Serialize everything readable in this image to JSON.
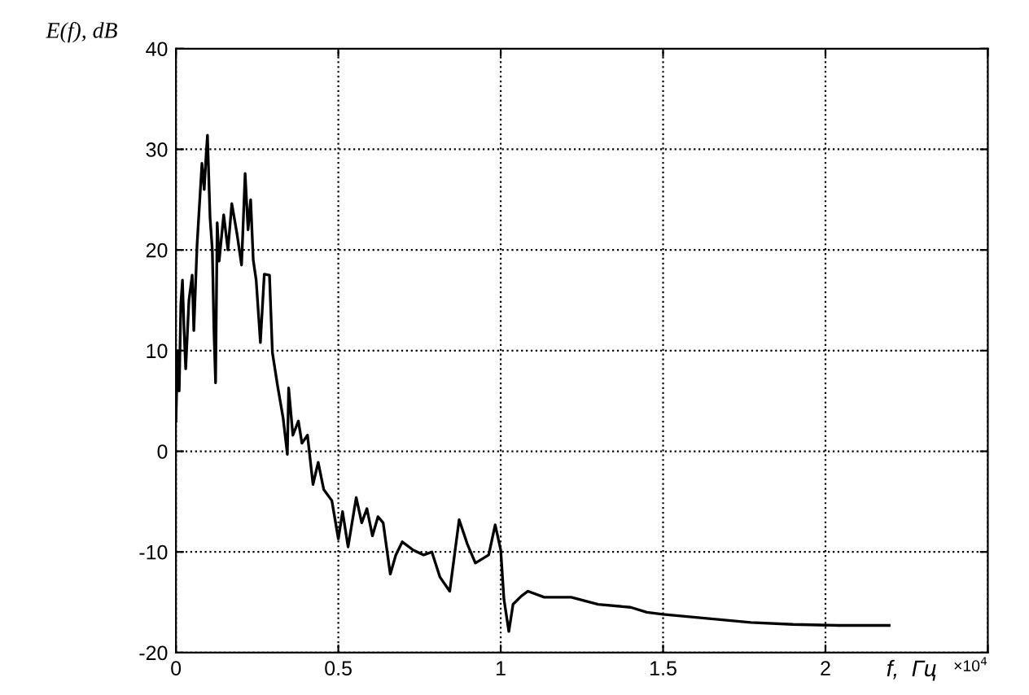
{
  "chart_data": {
    "type": "line",
    "xlabel": "f,  Гц",
    "ylabel": "E(f), dB",
    "annotations": [
      "×10$^{4}$"
    ],
    "x": [
      0,
      0.005,
      0.01,
      0.015,
      0.02,
      0.025,
      0.03,
      0.04,
      0.05,
      0.055,
      0.065,
      0.08,
      0.087,
      0.093,
      0.097,
      0.105,
      0.112,
      0.117,
      0.122,
      0.127,
      0.133,
      0.147,
      0.16,
      0.172,
      0.188,
      0.202,
      0.213,
      0.222,
      0.23,
      0.238,
      0.247,
      0.26,
      0.272,
      0.288,
      0.297,
      0.313,
      0.33,
      0.343,
      0.347,
      0.36,
      0.377,
      0.388,
      0.405,
      0.422,
      0.438,
      0.455,
      0.48,
      0.5,
      0.513,
      0.53,
      0.555,
      0.572,
      0.588,
      0.605,
      0.622,
      0.638,
      0.66,
      0.677,
      0.697,
      0.73,
      0.763,
      0.788,
      0.813,
      0.843,
      0.872,
      0.897,
      0.922,
      0.963,
      0.983,
      1.0,
      1.01,
      1.025,
      1.038,
      1.063,
      1.084,
      1.134,
      1.217,
      1.3,
      1.4,
      1.45,
      1.5,
      1.635,
      1.77,
      1.9,
      2.04,
      2.196
    ],
    "series": [
      {
        "color": "#000000",
        "values": [
          3,
          10,
          6,
          14.6,
          17,
          12,
          8.2,
          15,
          17.5,
          12,
          20.5,
          28.6,
          26,
          29.5,
          31.4,
          23.2,
          20,
          12,
          6.8,
          22.7,
          18.9,
          23.5,
          20,
          24.6,
          21.6,
          18.5,
          27.6,
          22,
          25,
          19,
          17,
          10.8,
          17.6,
          17.5,
          9.8,
          6.5,
          3.3,
          -0.3,
          6.3,
          1.6,
          3,
          0.8,
          1.6,
          -3.3,
          -1.1,
          -3.8,
          -4.9,
          -8.7,
          -6,
          -9.5,
          -4.6,
          -7.1,
          -5.7,
          -8.4,
          -6.5,
          -7.1,
          -12.2,
          -10.3,
          -9,
          -9.8,
          -10.3,
          -10,
          -12.5,
          -13.9,
          -6.8,
          -9.2,
          -11.1,
          -10.3,
          -7.3,
          -9.8,
          -14.7,
          -17.9,
          -15.2,
          -14.4,
          -13.9,
          -14.5,
          -14.5,
          -15.2,
          -15.5,
          -16,
          -16.2,
          -16.6,
          -17,
          -17.2,
          -17.3,
          -17.3
        ]
      }
    ],
    "xlim": [
      0,
      2.5
    ],
    "xticks": [
      0,
      0.5,
      1,
      1.5,
      2,
      {
        "value": 2.5,
        "label": null
      }
    ],
    "ylim": [
      -20,
      40
    ],
    "yticks": [
      -20,
      -10,
      0,
      10,
      20,
      30,
      40
    ],
    "grid": true,
    "marker": "none",
    "line_style": "solid"
  }
}
